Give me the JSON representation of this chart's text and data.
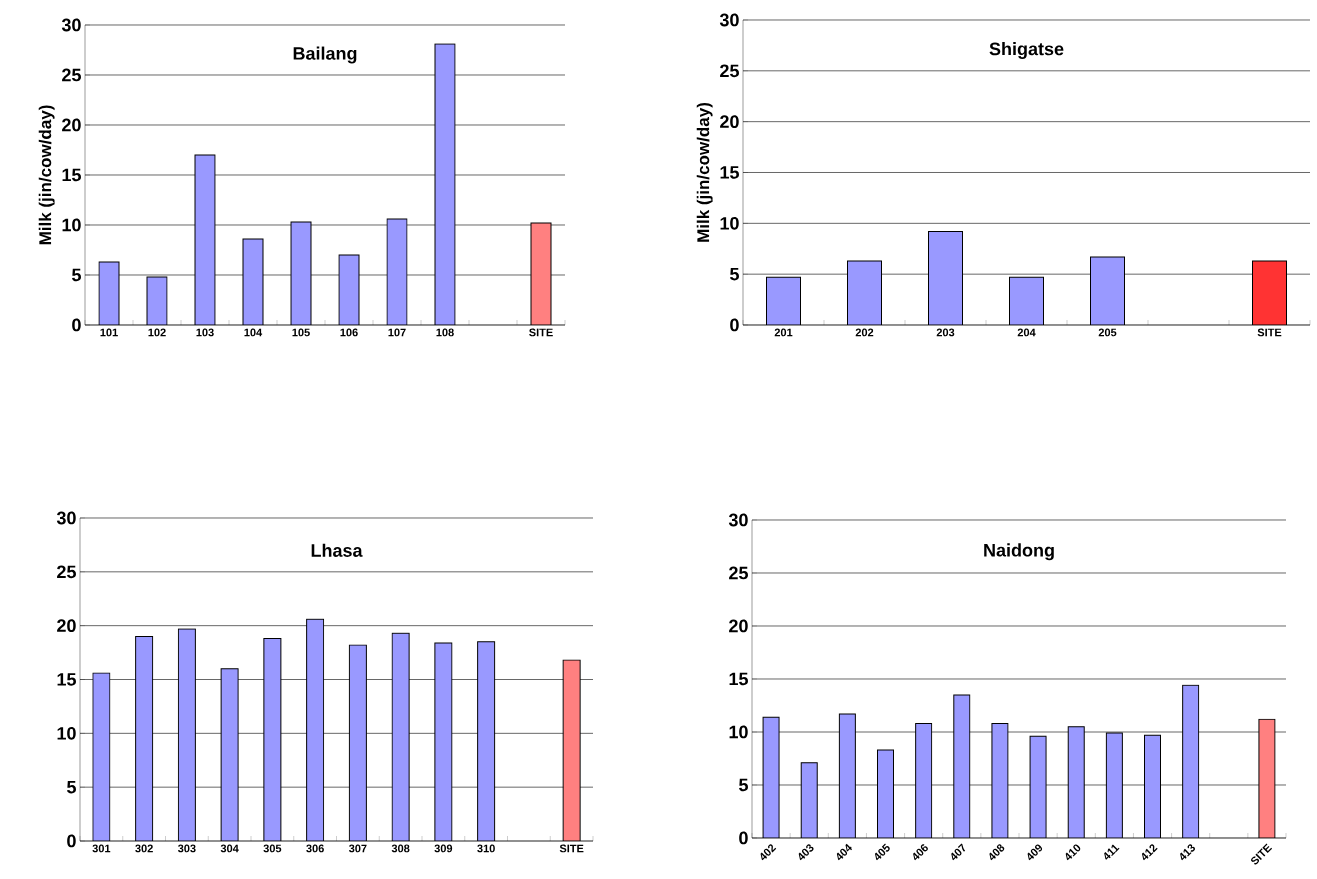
{
  "chart_data": [
    {
      "type": "bar",
      "title": "Bailang",
      "ylabel": "Milk (jin/cow/day)",
      "categories": [
        "101",
        "102",
        "103",
        "104",
        "105",
        "106",
        "107",
        "108",
        null,
        "SITE"
      ],
      "values": [
        6.3,
        4.8,
        17.0,
        8.6,
        10.3,
        7.0,
        10.6,
        28.1,
        null,
        10.2
      ],
      "colors": [
        "#9999ff",
        "#9999ff",
        "#9999ff",
        "#9999ff",
        "#9999ff",
        "#9999ff",
        "#9999ff",
        "#9999ff",
        "#9999ff",
        "#ff8080"
      ],
      "ylim": [
        0,
        30
      ],
      "yticks": [
        0,
        5,
        10,
        15,
        20,
        25,
        30
      ],
      "grid": "y"
    },
    {
      "type": "bar",
      "title": "Shigatse",
      "ylabel": "Milk (jin/cow/day)",
      "categories": [
        "201",
        "202",
        "203",
        "204",
        "205",
        null,
        "SITE"
      ],
      "values": [
        4.7,
        6.3,
        9.2,
        4.7,
        6.7,
        null,
        6.3
      ],
      "colors": [
        "#9999ff",
        "#9999ff",
        "#9999ff",
        "#9999ff",
        "#9999ff",
        "#9999ff",
        "#ff3333"
      ],
      "ylim": [
        0,
        30
      ],
      "yticks": [
        0,
        5,
        10,
        15,
        20,
        25,
        30
      ],
      "grid": "y"
    },
    {
      "type": "bar",
      "title": "Lhasa",
      "categories": [
        "301",
        "302",
        "303",
        "304",
        "305",
        "306",
        "307",
        "308",
        "309",
        "310",
        null,
        "SITE"
      ],
      "values": [
        15.6,
        19.0,
        19.7,
        16.0,
        18.8,
        20.6,
        18.2,
        19.3,
        18.4,
        18.5,
        null,
        16.8
      ],
      "colors": [
        "#9999ff",
        "#9999ff",
        "#9999ff",
        "#9999ff",
        "#9999ff",
        "#9999ff",
        "#9999ff",
        "#9999ff",
        "#9999ff",
        "#9999ff",
        "#9999ff",
        "#ff8080"
      ],
      "ylim": [
        0,
        30
      ],
      "yticks": [
        0,
        5,
        10,
        15,
        20,
        25,
        30
      ],
      "grid": "y"
    },
    {
      "type": "bar",
      "title": "Naidong",
      "categories": [
        "402",
        "403",
        "404",
        "405",
        "406",
        "407",
        "408",
        "409",
        "410",
        "411",
        "412",
        "413",
        null,
        "SITE"
      ],
      "values": [
        11.4,
        7.1,
        11.7,
        8.3,
        10.8,
        13.5,
        10.8,
        9.6,
        10.5,
        9.9,
        9.7,
        14.4,
        null,
        11.2
      ],
      "colors": [
        "#9999ff",
        "#9999ff",
        "#9999ff",
        "#9999ff",
        "#9999ff",
        "#9999ff",
        "#9999ff",
        "#9999ff",
        "#9999ff",
        "#9999ff",
        "#9999ff",
        "#9999ff",
        "#9999ff",
        "#ff8080"
      ],
      "ylim": [
        0,
        30
      ],
      "yticks": [
        0,
        5,
        10,
        15,
        20,
        25,
        30
      ],
      "grid": "y"
    }
  ]
}
